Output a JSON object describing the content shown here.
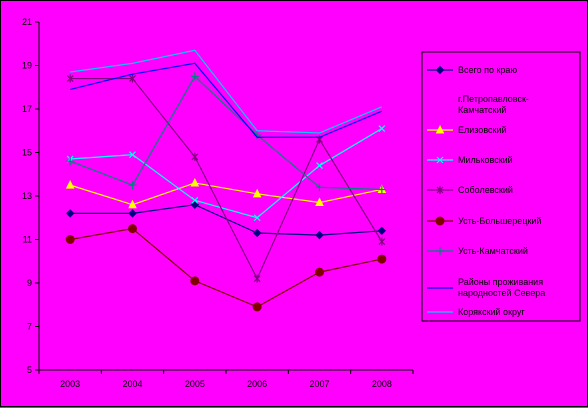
{
  "chart_data": {
    "type": "line",
    "title": "",
    "xlabel": "",
    "ylabel": "",
    "categories": [
      "2003",
      "2004",
      "2005",
      "2006",
      "2007",
      "2008"
    ],
    "ylim": [
      5,
      21
    ],
    "yticks": [
      5,
      7,
      9,
      11,
      13,
      15,
      17,
      19,
      21
    ],
    "grid": false,
    "legend_position": "right",
    "series": [
      {
        "name": "Всего по краю",
        "color": "#000080",
        "marker": "diamond",
        "values": [
          12.2,
          12.2,
          12.6,
          11.3,
          11.2,
          11.4
        ]
      },
      {
        "name": "г.Петропавловск-Камчатский",
        "color": "#ff00ff",
        "marker": "none",
        "values": [
          null,
          null,
          null,
          null,
          null,
          null
        ]
      },
      {
        "name": "Елизовский",
        "color": "#ffff00",
        "marker": "triangle",
        "values": [
          13.5,
          12.6,
          13.6,
          13.1,
          12.7,
          13.3
        ]
      },
      {
        "name": "Мильковский",
        "color": "#00ffff",
        "marker": "x",
        "values": [
          14.7,
          14.9,
          12.8,
          12.0,
          14.4,
          16.1
        ]
      },
      {
        "name": "Соболевский",
        "color": "#800080",
        "marker": "star",
        "values": [
          18.4,
          18.4,
          14.8,
          9.2,
          15.6,
          10.9
        ]
      },
      {
        "name": "Усть-Большерецкий",
        "color": "#800000",
        "marker": "circle",
        "values": [
          11.0,
          11.5,
          9.1,
          7.9,
          9.5,
          10.1
        ]
      },
      {
        "name": "Усть-Камчатский",
        "color": "#008080",
        "marker": "plus",
        "values": [
          14.6,
          13.5,
          18.5,
          15.8,
          13.4,
          13.3
        ]
      },
      {
        "name": "Районы проживания народностей Севера",
        "color": "#0000ff",
        "marker": "none",
        "values": [
          17.9,
          18.6,
          19.1,
          15.7,
          15.7,
          16.9
        ]
      },
      {
        "name": "Корякский округ",
        "color": "#00ccff",
        "marker": "none",
        "values": [
          18.7,
          19.1,
          19.7,
          16.0,
          15.9,
          17.1
        ]
      }
    ]
  }
}
